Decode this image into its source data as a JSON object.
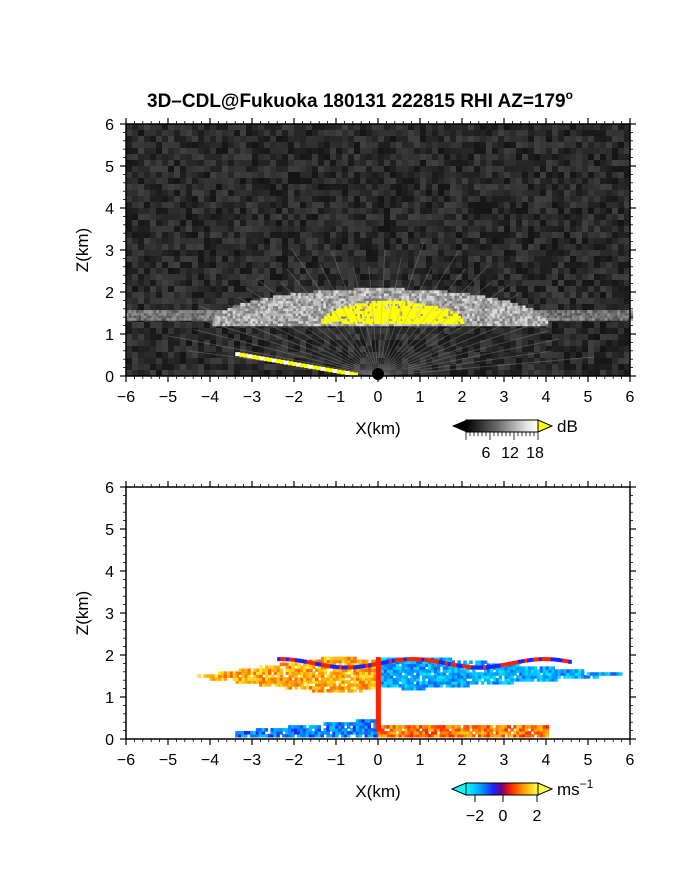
{
  "figure": {
    "title": "3D–CDL@Fukuoka 180131 222815 RHI AZ=179",
    "title_degree": "o"
  },
  "chart_data": [
    {
      "type": "heatmap",
      "name": "backscatter",
      "xlabel": "X(km)",
      "ylabel": "Z(km)",
      "xlim": [
        -6,
        6
      ],
      "ylim": [
        0,
        6
      ],
      "xticks": [
        "−6",
        "−5",
        "−4",
        "−3",
        "−2",
        "−1",
        "0",
        "1",
        "2",
        "3",
        "4",
        "5",
        "6"
      ],
      "yticks": [
        "0",
        "1",
        "2",
        "3",
        "4",
        "5",
        "6"
      ],
      "background": "#0a0a0a",
      "colorbar": {
        "unit": "dB",
        "ticks": [
          "6",
          "12",
          "18"
        ],
        "range": [
          0,
          21
        ]
      },
      "features": [
        {
          "kind": "layer",
          "x": [
            -6,
            6
          ],
          "z_center": 1.45,
          "z_halfwidth": 0.12,
          "value_db": 9
        },
        {
          "kind": "dome",
          "x_center": 0,
          "x_halfwidth": 4.0,
          "z_base": 1.2,
          "z_top": 2.05,
          "value_db": 12
        },
        {
          "kind": "core",
          "x_center": 0.3,
          "x_halfwidth": 1.7,
          "z_base": 1.2,
          "z_top": 1.75,
          "value_db": 20
        },
        {
          "kind": "ground_echo",
          "x": [
            -3.4,
            -0.5
          ],
          "z": [
            0.52,
            0.02
          ],
          "value_db": 20
        }
      ]
    },
    {
      "type": "heatmap",
      "name": "doppler_velocity",
      "xlabel": "X(km)",
      "ylabel": "Z(km)",
      "xlim": [
        -6,
        6
      ],
      "ylim": [
        0,
        6
      ],
      "xticks": [
        "−6",
        "−5",
        "−4",
        "−3",
        "−2",
        "−1",
        "0",
        "1",
        "2",
        "3",
        "4",
        "5",
        "6"
      ],
      "yticks": [
        "0",
        "1",
        "2",
        "3",
        "4",
        "5",
        "6"
      ],
      "background": "#ffffff",
      "colorbar": {
        "unit": "ms",
        "unit_exponent": "−1",
        "ticks": [
          "−2",
          "0",
          "2"
        ],
        "range": [
          -3,
          3
        ]
      },
      "features": [
        {
          "kind": "outflow_left",
          "x": [
            -5,
            0
          ],
          "z": [
            1.05,
            1.95
          ],
          "velocity_ms": 2.0
        },
        {
          "kind": "outflow_right",
          "x": [
            0,
            6
          ],
          "z": [
            1.1,
            1.9
          ],
          "velocity_ms": -2.0
        },
        {
          "kind": "low_layer_left",
          "x": [
            -3.4,
            0
          ],
          "z": [
            0.05,
            0.5
          ],
          "velocity_ms": -1.5
        },
        {
          "kind": "low_layer_right",
          "x": [
            0,
            4
          ],
          "z": [
            0.05,
            0.35
          ],
          "velocity_ms": 1.5
        }
      ]
    }
  ]
}
